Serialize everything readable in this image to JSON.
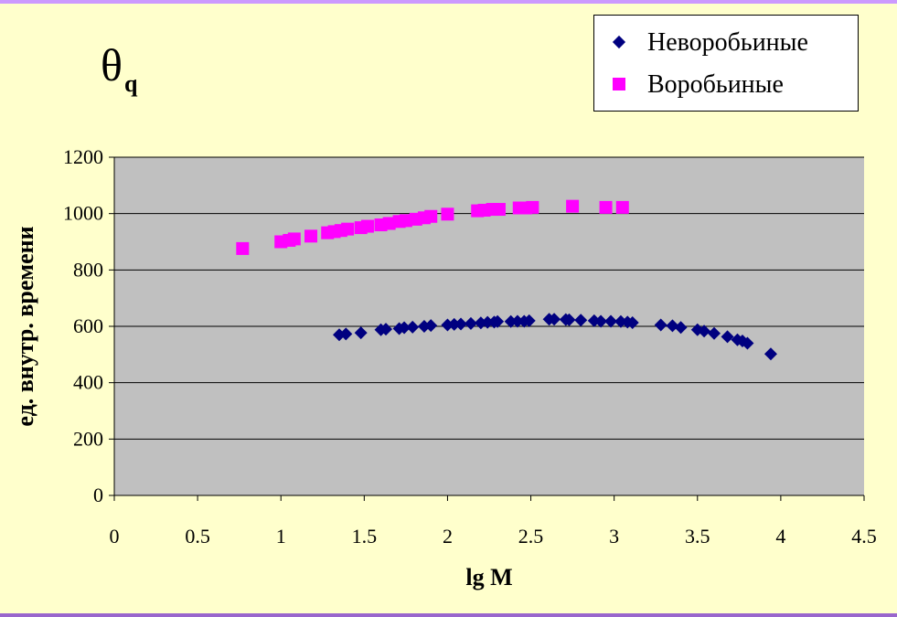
{
  "title": {
    "symbol": "θ",
    "subscript": "q"
  },
  "chart_data": {
    "type": "scatter",
    "xlabel": "lg M",
    "ylabel": "ед. внутр. времени",
    "xlim": [
      0,
      4.5
    ],
    "ylim": [
      0,
      1200
    ],
    "xticks": [
      "0",
      "0.5",
      "1",
      "1.5",
      "2",
      "2.5",
      "3",
      "3.5",
      "4",
      "4.5"
    ],
    "yticks": [
      "0",
      "200",
      "400",
      "600",
      "800",
      "1000",
      "1200"
    ],
    "grid": "horizontal",
    "legend_position": "top-right",
    "plot_background": "#c0c0c0",
    "series": [
      {
        "name": "Неворобьиные",
        "marker": "diamond",
        "color": "#000080",
        "points": [
          [
            1.35,
            570
          ],
          [
            1.39,
            573
          ],
          [
            1.48,
            577
          ],
          [
            1.6,
            588
          ],
          [
            1.63,
            590
          ],
          [
            1.71,
            592
          ],
          [
            1.74,
            595
          ],
          [
            1.79,
            597
          ],
          [
            1.86,
            600
          ],
          [
            1.9,
            603
          ],
          [
            2.0,
            605
          ],
          [
            2.04,
            607
          ],
          [
            2.08,
            608
          ],
          [
            2.14,
            610
          ],
          [
            2.2,
            612
          ],
          [
            2.24,
            614
          ],
          [
            2.28,
            615
          ],
          [
            2.3,
            617
          ],
          [
            2.38,
            617
          ],
          [
            2.42,
            618
          ],
          [
            2.46,
            618
          ],
          [
            2.49,
            620
          ],
          [
            2.61,
            625
          ],
          [
            2.64,
            625
          ],
          [
            2.71,
            624
          ],
          [
            2.73,
            623
          ],
          [
            2.8,
            622
          ],
          [
            2.88,
            620
          ],
          [
            2.92,
            618
          ],
          [
            2.98,
            618
          ],
          [
            3.04,
            617
          ],
          [
            3.08,
            615
          ],
          [
            3.11,
            613
          ],
          [
            3.28,
            605
          ],
          [
            3.35,
            602
          ],
          [
            3.4,
            596
          ],
          [
            3.5,
            588
          ],
          [
            3.54,
            583
          ],
          [
            3.6,
            575
          ],
          [
            3.68,
            563
          ],
          [
            3.74,
            552
          ],
          [
            3.77,
            548
          ],
          [
            3.8,
            540
          ],
          [
            3.94,
            502
          ]
        ]
      },
      {
        "name": "Воробьиные",
        "marker": "square",
        "color": "#ff00ff",
        "points": [
          [
            0.77,
            876
          ],
          [
            1.0,
            900
          ],
          [
            1.05,
            905
          ],
          [
            1.08,
            910
          ],
          [
            1.18,
            920
          ],
          [
            1.28,
            932
          ],
          [
            1.32,
            936
          ],
          [
            1.36,
            940
          ],
          [
            1.4,
            945
          ],
          [
            1.48,
            950
          ],
          [
            1.52,
            955
          ],
          [
            1.6,
            960
          ],
          [
            1.65,
            965
          ],
          [
            1.71,
            972
          ],
          [
            1.75,
            975
          ],
          [
            1.81,
            980
          ],
          [
            1.86,
            985
          ],
          [
            1.9,
            990
          ],
          [
            2.0,
            998
          ],
          [
            2.18,
            1010
          ],
          [
            2.22,
            1012
          ],
          [
            2.27,
            1015
          ],
          [
            2.31,
            1015
          ],
          [
            2.43,
            1020
          ],
          [
            2.47,
            1020
          ],
          [
            2.51,
            1022
          ],
          [
            2.75,
            1026
          ],
          [
            2.95,
            1022
          ],
          [
            3.05,
            1022
          ]
        ]
      }
    ]
  }
}
